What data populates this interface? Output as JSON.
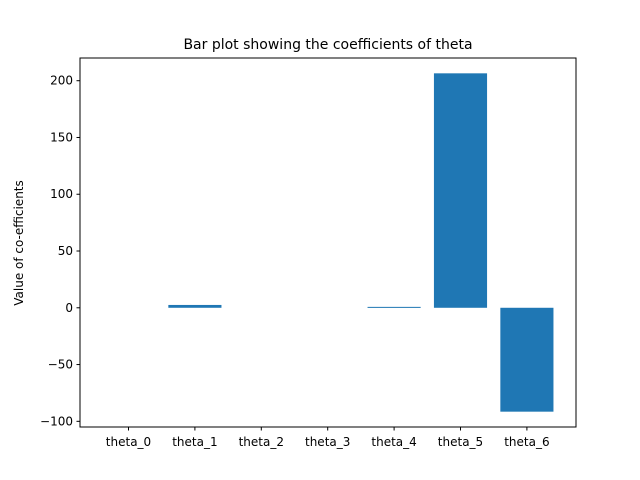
{
  "chart_data": {
    "type": "bar",
    "title": "Bar plot showing the coefficients of theta",
    "xlabel": "",
    "ylabel": "Value of co-efficients",
    "categories": [
      "theta_0",
      "theta_1",
      "theta_2",
      "theta_3",
      "theta_4",
      "theta_5",
      "theta_6"
    ],
    "values": [
      0.0,
      2.5,
      0.0,
      0.0,
      0.8,
      206.5,
      -91.5
    ],
    "ylim": [
      -105,
      220
    ],
    "yticks": [
      -100,
      -50,
      0,
      50,
      100,
      150,
      200
    ],
    "ytick_labels": [
      "−100",
      "−50",
      "0",
      "50",
      "100",
      "150",
      "200"
    ],
    "bar_color": "#1f77b4",
    "grid": false
  }
}
